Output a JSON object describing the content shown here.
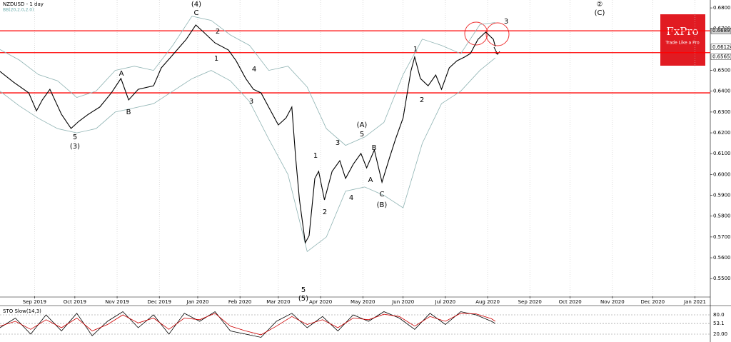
{
  "chart_data": {
    "type": "line",
    "title": "NZDUSD - 1 day",
    "subtitle": "BB(20,2.0,2.0)",
    "xlim": [
      0,
      370
    ],
    "ylim": [
      0.5415,
      0.6838
    ],
    "xticks": [
      {
        "value": 18,
        "label": "Sep 2019"
      },
      {
        "value": 39,
        "label": "Oct 2019"
      },
      {
        "value": 61,
        "label": "Nov 2019"
      },
      {
        "value": 83,
        "label": "Dec 2019"
      },
      {
        "value": 103,
        "label": "Jan 2020"
      },
      {
        "value": 125,
        "label": "Feb 2020"
      },
      {
        "value": 145,
        "label": "Mar 2020"
      },
      {
        "value": 167,
        "label": "Apr 2020"
      },
      {
        "value": 189,
        "label": "May 2020"
      },
      {
        "value": 210,
        "label": "Jun 2020"
      },
      {
        "value": 232,
        "label": "Jul 2020"
      },
      {
        "value": 254,
        "label": "Aug 2020"
      },
      {
        "value": 276,
        "label": "Sep 2020"
      },
      {
        "value": 297,
        "label": "Oct 2020"
      },
      {
        "value": 319,
        "label": "Nov 2020"
      },
      {
        "value": 340,
        "label": "Dec 2020"
      },
      {
        "value": 362,
        "label": "Jan 2021"
      }
    ],
    "yticks": [
      {
        "value": 0.68,
        "label": "0.68000"
      },
      {
        "value": 0.67,
        "label": "0.67000"
      },
      {
        "value": 0.65,
        "label": "0.65000"
      },
      {
        "value": 0.64,
        "label": "0.64000"
      },
      {
        "value": 0.63,
        "label": "0.63000"
      },
      {
        "value": 0.62,
        "label": "0.62000"
      },
      {
        "value": 0.61,
        "label": "0.61000"
      },
      {
        "value": 0.6,
        "label": "0.60000"
      },
      {
        "value": 0.59,
        "label": "0.59000"
      },
      {
        "value": 0.58,
        "label": "0.58000"
      },
      {
        "value": 0.57,
        "label": "0.57000"
      },
      {
        "value": 0.56,
        "label": "0.56000"
      },
      {
        "value": 0.55,
        "label": "0.55000"
      }
    ],
    "price_labels": [
      {
        "value": 0.66897,
        "label": "0.66897"
      },
      {
        "value": 0.66124,
        "label": "0.66124"
      },
      {
        "value": 0.65651,
        "label": "0.65651"
      }
    ],
    "levels": [
      0.669,
      0.6585,
      0.6392
    ],
    "level_color": "#ff0000",
    "series": [
      {
        "color": "#000000",
        "x": [
          0,
          7,
          15,
          19,
          22,
          26,
          32,
          37,
          41,
          46,
          52,
          58,
          63,
          67,
          72,
          80,
          84,
          89,
          97,
          102,
          106,
          112,
          119,
          123,
          128,
          132,
          136,
          141,
          145,
          149,
          152,
          154,
          156,
          159,
          161,
          164,
          166,
          169,
          173,
          177,
          180,
          184,
          188,
          191,
          195,
          199,
          203,
          206,
          210,
          214,
          216,
          219,
          223,
          227,
          230,
          234,
          238,
          242,
          245,
          249,
          253,
          257,
          258
        ],
        "values": [
          0.6495,
          0.6444,
          0.6392,
          0.6306,
          0.6358,
          0.6409,
          0.6289,
          0.6221,
          0.6255,
          0.6289,
          0.6324,
          0.6392,
          0.6461,
          0.6358,
          0.6409,
          0.6426,
          0.6512,
          0.6564,
          0.6649,
          0.6718,
          0.6684,
          0.6632,
          0.6598,
          0.6546,
          0.6461,
          0.6409,
          0.6392,
          0.6306,
          0.6238,
          0.6272,
          0.6324,
          0.6083,
          0.5878,
          0.5672,
          0.5706,
          0.5981,
          0.6015,
          0.5878,
          0.6015,
          0.6066,
          0.5981,
          0.6049,
          0.6101,
          0.6032,
          0.6118,
          0.5963,
          0.6083,
          0.6169,
          0.6272,
          0.6495,
          0.6564,
          0.6461,
          0.6426,
          0.6478,
          0.6409,
          0.6512,
          0.6546,
          0.6564,
          0.6581,
          0.6649,
          0.6684,
          0.6649,
          0.6615
        ]
      },
      {
        "color": "#8fb3b3",
        "x": [
          0,
          10,
          20,
          30,
          40,
          50,
          60,
          70,
          80,
          90,
          100,
          110,
          120,
          130,
          140,
          150,
          160,
          170,
          180,
          190,
          200,
          210,
          220,
          230,
          240,
          250,
          258
        ],
        "values": [
          0.66,
          0.655,
          0.648,
          0.645,
          0.637,
          0.64,
          0.65,
          0.652,
          0.65,
          0.662,
          0.676,
          0.674,
          0.667,
          0.662,
          0.65,
          0.652,
          0.642,
          0.622,
          0.614,
          0.618,
          0.625,
          0.648,
          0.665,
          0.662,
          0.658,
          0.672,
          0.673
        ]
      },
      {
        "color": "#8fb3b3",
        "x": [
          0,
          10,
          20,
          30,
          40,
          50,
          60,
          70,
          80,
          90,
          100,
          110,
          120,
          130,
          140,
          150,
          160,
          170,
          180,
          190,
          200,
          210,
          220,
          230,
          240,
          250,
          258
        ],
        "values": [
          0.64,
          0.633,
          0.627,
          0.622,
          0.62,
          0.622,
          0.63,
          0.632,
          0.634,
          0.64,
          0.646,
          0.65,
          0.645,
          0.635,
          0.617,
          0.6,
          0.563,
          0.57,
          0.592,
          0.594,
          0.59,
          0.584,
          0.615,
          0.634,
          0.64,
          0.65,
          0.656
        ]
      }
    ],
    "annotations": [
      "(4)",
      "C",
      "2",
      "1",
      "4",
      "3",
      "A",
      "B",
      "5",
      "(3)",
      "1",
      "3",
      "2",
      "(A)",
      "5",
      "B",
      "A",
      "4",
      "C",
      "(B)",
      "5",
      "(5)",
      "1",
      "2",
      "3",
      "②",
      "(C)"
    ],
    "oscillator": {
      "title": "STO Slow(14,3)",
      "ylim": [
        0,
        100
      ],
      "yticks": [
        {
          "value": 80,
          "label": "80.0"
        },
        {
          "value": 53.1,
          "label": "53.1"
        },
        {
          "value": 20,
          "label": "20.00"
        }
      ],
      "series": [
        {
          "color": "#000000",
          "x": [
            0,
            8,
            16,
            24,
            32,
            40,
            48,
            56,
            64,
            72,
            80,
            88,
            96,
            104,
            112,
            120,
            128,
            136,
            144,
            152,
            160,
            168,
            176,
            184,
            192,
            200,
            208,
            216,
            224,
            232,
            240,
            248,
            256,
            258
          ],
          "values": [
            40,
            70,
            20,
            80,
            30,
            85,
            15,
            60,
            90,
            40,
            80,
            20,
            85,
            60,
            90,
            30,
            20,
            10,
            60,
            85,
            40,
            75,
            30,
            80,
            60,
            90,
            70,
            35,
            85,
            50,
            90,
            80,
            60,
            53.1
          ]
        },
        {
          "color": "#cc0000",
          "x": [
            0,
            8,
            16,
            24,
            32,
            40,
            48,
            56,
            64,
            72,
            80,
            88,
            96,
            104,
            112,
            120,
            128,
            136,
            144,
            152,
            160,
            168,
            176,
            184,
            192,
            200,
            208,
            216,
            224,
            232,
            240,
            248,
            256,
            258
          ],
          "values": [
            45,
            60,
            35,
            65,
            40,
            70,
            30,
            50,
            80,
            55,
            70,
            35,
            70,
            65,
            85,
            45,
            30,
            18,
            45,
            75,
            50,
            65,
            40,
            70,
            65,
            82,
            75,
            45,
            75,
            60,
            85,
            83,
            68,
            60
          ]
        }
      ]
    },
    "logo": {
      "brand": "FxPro",
      "tagline": "Trade Like a Pro"
    }
  }
}
